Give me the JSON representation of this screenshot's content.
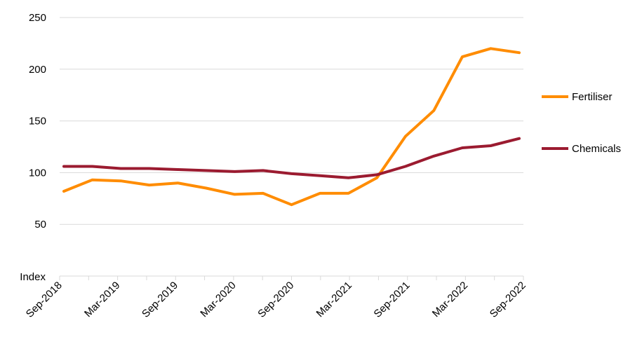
{
  "chart_data": {
    "type": "line",
    "ylabel": "Index",
    "ylim": [
      0,
      250
    ],
    "yticks": [
      50,
      100,
      150,
      200,
      250
    ],
    "categories": [
      "Sep-2018",
      "Dec-2018",
      "Mar-2019",
      "Jun-2019",
      "Sep-2019",
      "Dec-2019",
      "Mar-2020",
      "Jun-2020",
      "Sep-2020",
      "Dec-2020",
      "Mar-2021",
      "Jun-2021",
      "Sep-2021",
      "Dec-2021",
      "Mar-2022",
      "Jun-2022",
      "Sep-2022"
    ],
    "tick_labels": [
      "Sep-2018",
      "Mar-2019",
      "Sep-2019",
      "Mar-2020",
      "Sep-2020",
      "Mar-2021",
      "Sep-2021",
      "Mar-2022",
      "Sep-2022"
    ],
    "grid": true,
    "legend_position": "right",
    "series": [
      {
        "name": "Fertiliser",
        "color": "#ff8c00",
        "values": [
          82,
          93,
          92,
          88,
          90,
          85,
          79,
          80,
          69,
          80,
          80,
          95,
          135,
          160,
          212,
          220,
          216
        ]
      },
      {
        "name": "Chemicals",
        "color": "#9b1b30",
        "values": [
          106,
          106,
          104,
          104,
          103,
          102,
          101,
          102,
          99,
          97,
          95,
          98,
          106,
          116,
          124,
          126,
          133
        ]
      }
    ]
  }
}
